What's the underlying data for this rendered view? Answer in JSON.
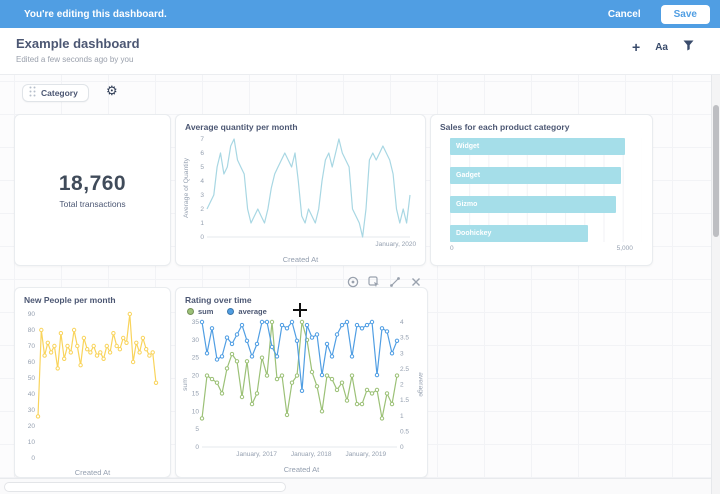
{
  "topbar": {
    "message": "You're editing this dashboard.",
    "cancel_label": "Cancel",
    "save_label": "Save",
    "bg": "#509EE3"
  },
  "header": {
    "title": "Example dashboard",
    "subtitle": "Edited a few seconds ago by you",
    "add_icon_label": "+",
    "text_icon_label": "Aa"
  },
  "filter": {
    "label": "Category"
  },
  "cards": {
    "total": {
      "value": "18,760",
      "label": "Total transactions"
    }
  },
  "colors": {
    "accent": "#509EE3",
    "cyan": "#A5DEE9",
    "pale_line": "#A8D7E3",
    "yellow": "#F9D45C",
    "green": "#9CC177",
    "blue": "#509EE3"
  },
  "chart_data": [
    {
      "id": "avg_quantity",
      "type": "line",
      "title": "Average quantity per month",
      "ylabel": "Average of Quantity",
      "xlabel": "Created At",
      "ylim": [
        0,
        7
      ],
      "yticks": [
        0,
        1,
        2,
        3,
        4,
        5,
        6,
        7
      ],
      "xticks": [
        {
          "label": "January, 2020",
          "pos": 0.93
        }
      ],
      "color": "#A8D7E3",
      "markers": false,
      "values": [
        2,
        2.5,
        3,
        5,
        6,
        4.5,
        5,
        6.5,
        7,
        5.5,
        5,
        4.5,
        2,
        1,
        1.5,
        2,
        1.5,
        1,
        2,
        3.5,
        4.5,
        5,
        5.5,
        6,
        5.5,
        5,
        6,
        4,
        1.5,
        1,
        2,
        1.5,
        1,
        2,
        4,
        5.5,
        6,
        5,
        6,
        7,
        6,
        5.5,
        5,
        2,
        1.5,
        1,
        0,
        2,
        5.5,
        6,
        5.5,
        6,
        6.5,
        6,
        5.5,
        4.5,
        2,
        1,
        2,
        1,
        3
      ]
    },
    {
      "id": "sales",
      "type": "bar",
      "title": "Sales for each product category",
      "categories": [
        "Widget",
        "Gadget",
        "Gizmo",
        "Doohickey"
      ],
      "values": [
        5120,
        4990,
        4830,
        4030
      ],
      "xlim": [
        0,
        5600
      ],
      "xticks": [
        "0",
        "5,000"
      ],
      "color": "#A5DEE9",
      "grid": true
    },
    {
      "id": "new_people",
      "type": "line",
      "title": "New People per month",
      "xlabel": "Created At",
      "ylim": [
        0,
        90
      ],
      "yticks": [
        0,
        10,
        20,
        30,
        40,
        50,
        60,
        70,
        80,
        90
      ],
      "xticks": [],
      "color": "#F9D45C",
      "markers": true,
      "values": [
        26,
        80,
        64,
        72,
        66,
        70,
        56,
        78,
        62,
        70,
        66,
        80,
        70,
        58,
        75,
        68,
        66,
        70,
        64,
        66,
        62,
        70,
        66,
        78,
        70,
        68,
        75,
        72,
        90,
        60,
        72,
        66,
        75,
        68,
        64,
        66,
        47
      ]
    },
    {
      "id": "rating",
      "type": "line",
      "title": "Rating over time",
      "xlabel": "Created At",
      "legend_position": "top-left",
      "left": {
        "label": "sum",
        "lim": [
          0,
          35
        ],
        "ticks": [
          0,
          5,
          10,
          15,
          20,
          25,
          30,
          35
        ]
      },
      "right": {
        "label": "average",
        "lim": [
          0,
          4
        ],
        "ticks": [
          0,
          0.5,
          1,
          1.5,
          2,
          2.5,
          3,
          3.5,
          4
        ]
      },
      "xticks": [
        {
          "label": "January, 2017",
          "pos": 0.28
        },
        {
          "label": "January, 2018",
          "pos": 0.56
        },
        {
          "label": "January, 2019",
          "pos": 0.84
        }
      ],
      "series": [
        {
          "name": "sum",
          "axis": "left",
          "color": "#9CC177",
          "markers": true,
          "values": [
            8,
            20,
            19,
            18,
            15,
            22,
            26,
            24,
            14,
            24,
            12,
            15,
            25,
            20,
            35,
            19,
            20,
            9,
            18,
            20,
            35,
            30,
            21,
            17,
            10,
            20,
            19,
            16,
            18,
            13,
            20,
            12,
            12,
            16,
            15,
            16,
            8,
            15,
            12,
            20
          ]
        },
        {
          "name": "average",
          "axis": "right",
          "color": "#509EE3",
          "markers": true,
          "values": [
            4,
            3,
            3.8,
            2.8,
            2.9,
            3.5,
            3.3,
            3.6,
            3.9,
            3.4,
            2.9,
            3.3,
            4,
            4,
            3.2,
            2.9,
            3.9,
            3.8,
            4,
            3.4,
            1.8,
            3.9,
            3.5,
            3.6,
            2.3,
            3.3,
            2.9,
            3.6,
            3.9,
            4,
            2.9,
            3.9,
            3.8,
            3.9,
            4,
            2.3,
            3.8,
            3.7,
            3,
            3.4
          ]
        }
      ]
    }
  ]
}
